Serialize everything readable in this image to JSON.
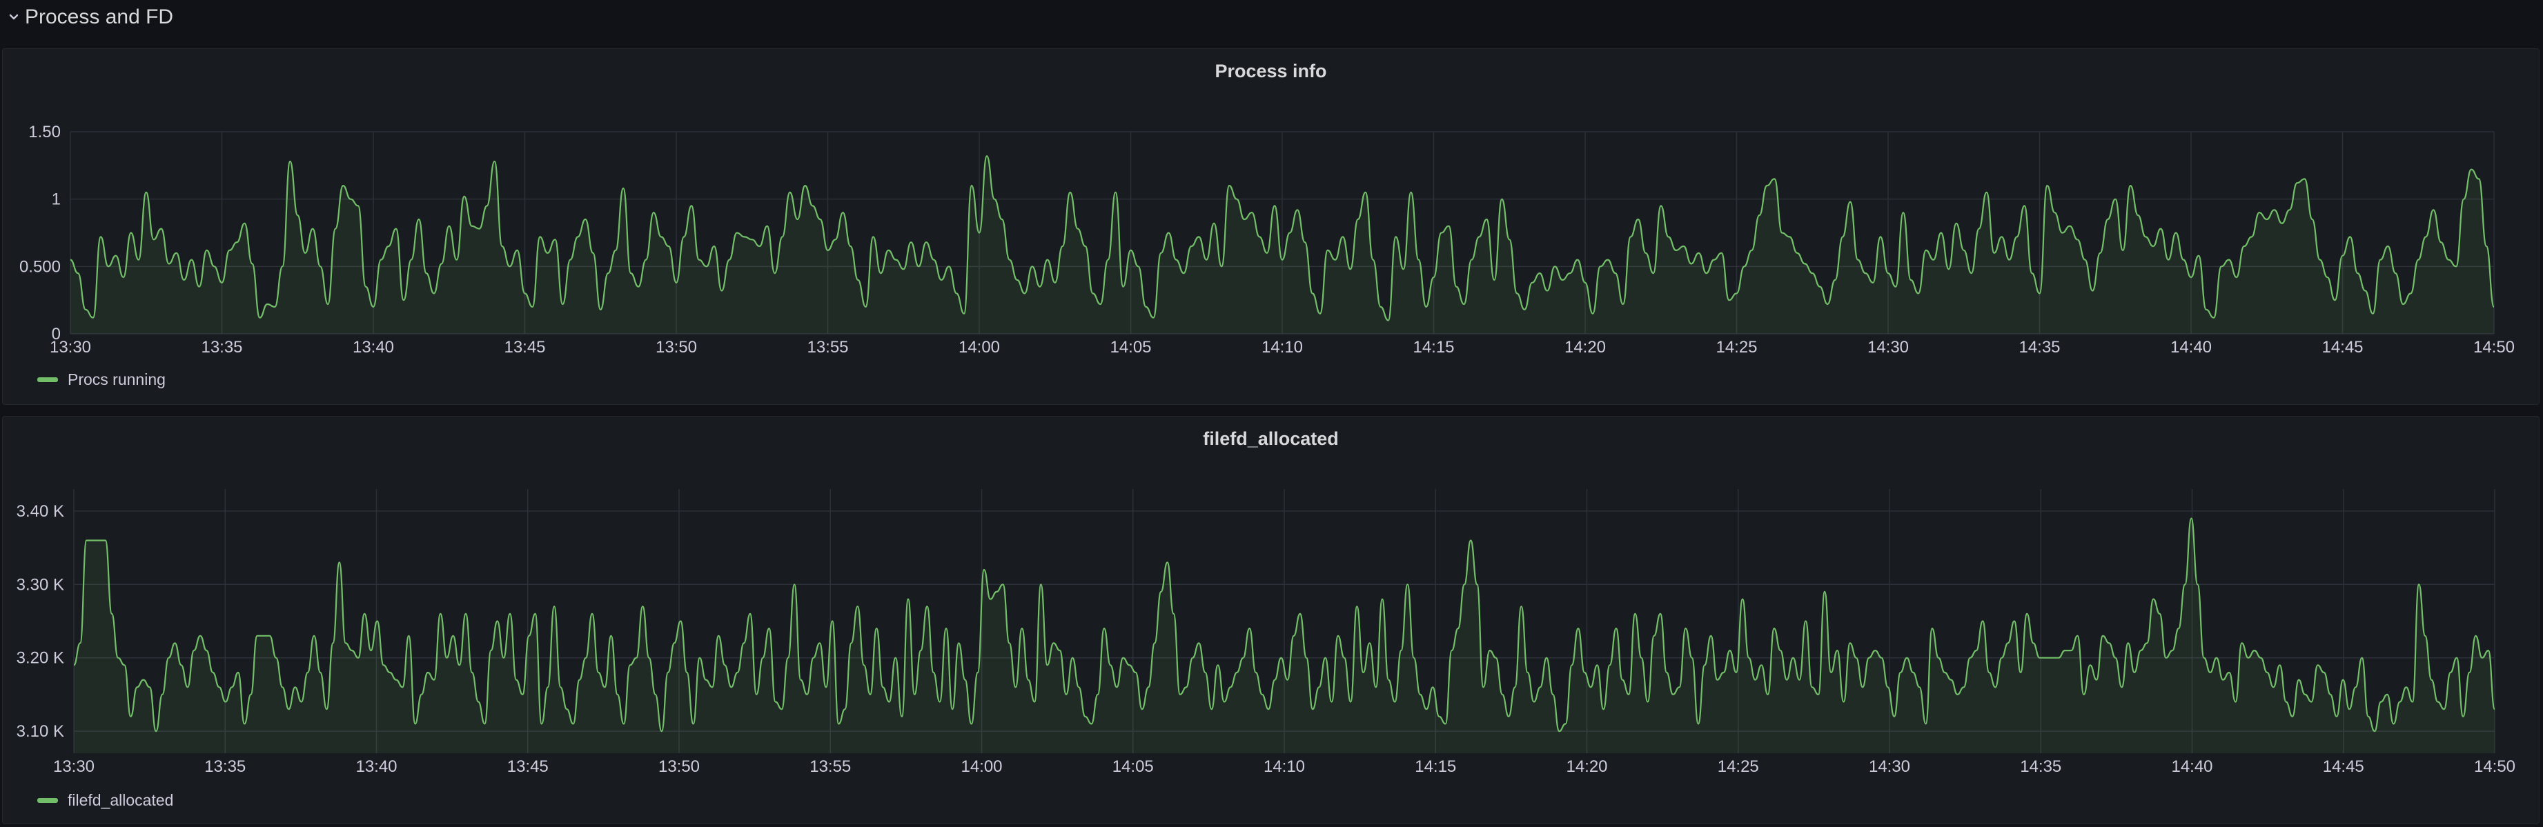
{
  "row": {
    "title": "Process and FD"
  },
  "colors": {
    "series": "#73bf69",
    "fill": "rgba(115,191,105,0.10)",
    "grid": "#2c3038",
    "axis_text": "#ccccdc",
    "panel_bg": "#181b1f",
    "page_bg": "#111217"
  },
  "panels": [
    {
      "title": "Process info",
      "legend": "Procs running",
      "chart_data": {
        "type": "area",
        "x_start": "13:30",
        "x_end": "14:50",
        "x_ticks": [
          "13:30",
          "13:35",
          "13:40",
          "13:45",
          "13:50",
          "13:55",
          "14:00",
          "14:05",
          "14:10",
          "14:15",
          "14:20",
          "14:25",
          "14:30",
          "14:35",
          "14:40",
          "14:45",
          "14:50"
        ],
        "y_ticks": [
          {
            "v": 0,
            "label": "0"
          },
          {
            "v": 0.5,
            "label": "0.500"
          },
          {
            "v": 1,
            "label": "1"
          },
          {
            "v": 1.5,
            "label": "1.50"
          }
        ],
        "ylim": [
          0,
          1.5
        ],
        "series": [
          {
            "name": "Procs running",
            "values": [
              0.55,
              0.45,
              0.18,
              0.12,
              0.72,
              0.5,
              0.58,
              0.42,
              0.75,
              0.55,
              1.05,
              0.7,
              0.78,
              0.52,
              0.6,
              0.4,
              0.55,
              0.35,
              0.62,
              0.5,
              0.38,
              0.62,
              0.68,
              0.82,
              0.52,
              0.12,
              0.22,
              0.2,
              0.5,
              1.28,
              0.88,
              0.6,
              0.78,
              0.5,
              0.22,
              0.78,
              1.1,
              1.0,
              0.95,
              0.35,
              0.2,
              0.55,
              0.65,
              0.78,
              0.25,
              0.55,
              0.85,
              0.45,
              0.3,
              0.52,
              0.8,
              0.55,
              1.02,
              0.8,
              0.78,
              0.95,
              1.28,
              0.65,
              0.5,
              0.62,
              0.3,
              0.2,
              0.72,
              0.6,
              0.7,
              0.22,
              0.55,
              0.72,
              0.85,
              0.6,
              0.18,
              0.45,
              0.62,
              1.08,
              0.45,
              0.35,
              0.55,
              0.9,
              0.72,
              0.65,
              0.38,
              0.72,
              0.95,
              0.55,
              0.5,
              0.65,
              0.32,
              0.55,
              0.75,
              0.72,
              0.7,
              0.65,
              0.8,
              0.45,
              0.72,
              1.05,
              0.85,
              1.1,
              0.95,
              0.85,
              0.62,
              0.7,
              0.9,
              0.65,
              0.4,
              0.2,
              0.72,
              0.45,
              0.62,
              0.55,
              0.48,
              0.68,
              0.5,
              0.68,
              0.55,
              0.4,
              0.5,
              0.3,
              0.15,
              1.1,
              0.75,
              1.32,
              1.0,
              0.85,
              0.55,
              0.4,
              0.3,
              0.5,
              0.35,
              0.55,
              0.38,
              0.65,
              1.05,
              0.78,
              0.65,
              0.3,
              0.22,
              0.55,
              1.05,
              0.35,
              0.62,
              0.5,
              0.2,
              0.12,
              0.6,
              0.75,
              0.55,
              0.45,
              0.65,
              0.72,
              0.55,
              0.82,
              0.5,
              1.1,
              1.0,
              0.85,
              0.9,
              0.72,
              0.6,
              0.95,
              0.55,
              0.75,
              0.92,
              0.68,
              0.3,
              0.15,
              0.62,
              0.55,
              0.72,
              0.48,
              0.85,
              1.05,
              0.55,
              0.2,
              0.1,
              0.72,
              0.48,
              1.05,
              0.55,
              0.2,
              0.42,
              0.75,
              0.8,
              0.35,
              0.22,
              0.55,
              0.72,
              0.85,
              0.4,
              1.0,
              0.7,
              0.3,
              0.18,
              0.38,
              0.45,
              0.32,
              0.5,
              0.4,
              0.45,
              0.55,
              0.38,
              0.15,
              0.5,
              0.55,
              0.45,
              0.22,
              0.72,
              0.85,
              0.6,
              0.45,
              0.95,
              0.72,
              0.62,
              0.65,
              0.52,
              0.6,
              0.45,
              0.55,
              0.6,
              0.25,
              0.3,
              0.5,
              0.62,
              0.88,
              1.1,
              1.15,
              0.75,
              0.72,
              0.6,
              0.52,
              0.45,
              0.35,
              0.22,
              0.4,
              0.72,
              0.98,
              0.55,
              0.45,
              0.38,
              0.72,
              0.45,
              0.35,
              0.9,
              0.4,
              0.3,
              0.62,
              0.55,
              0.75,
              0.48,
              0.82,
              0.62,
              0.45,
              0.78,
              1.05,
              0.6,
              0.72,
              0.55,
              0.72,
              0.95,
              0.45,
              0.3,
              1.1,
              0.9,
              0.75,
              0.8,
              0.7,
              0.55,
              0.32,
              0.6,
              0.85,
              1.0,
              0.62,
              1.1,
              0.88,
              0.72,
              0.65,
              0.78,
              0.55,
              0.75,
              0.55,
              0.42,
              0.58,
              0.18,
              0.12,
              0.5,
              0.55,
              0.42,
              0.65,
              0.72,
              0.9,
              0.85,
              0.92,
              0.82,
              0.92,
              1.12,
              1.15,
              0.85,
              0.55,
              0.42,
              0.25,
              0.58,
              0.72,
              0.45,
              0.32,
              0.15,
              0.55,
              0.65,
              0.45,
              0.22,
              0.3,
              0.55,
              0.72,
              0.92,
              0.68,
              0.55,
              0.5,
              1.0,
              1.22,
              1.15,
              0.65,
              0.2
            ]
          }
        ]
      }
    },
    {
      "title": "filefd_allocated",
      "legend": "filefd_allocated",
      "chart_data": {
        "type": "area",
        "x_start": "13:30",
        "x_end": "14:50",
        "x_ticks": [
          "13:30",
          "13:35",
          "13:40",
          "13:45",
          "13:50",
          "13:55",
          "14:00",
          "14:05",
          "14:10",
          "14:15",
          "14:20",
          "14:25",
          "14:30",
          "14:35",
          "14:40",
          "14:45",
          "14:50"
        ],
        "y_ticks": [
          {
            "v": 3100,
            "label": "3.10 K"
          },
          {
            "v": 3200,
            "label": "3.20 K"
          },
          {
            "v": 3300,
            "label": "3.30 K"
          },
          {
            "v": 3400,
            "label": "3.40 K"
          }
        ],
        "ylim": [
          3070,
          3430
        ],
        "series": [
          {
            "name": "filefd_allocated",
            "values": [
              3190,
              3220,
              3360,
              3360,
              3360,
              3360,
              3260,
              3200,
              3190,
              3120,
              3160,
              3170,
              3160,
              3100,
              3150,
              3200,
              3220,
              3190,
              3160,
              3210,
              3230,
              3210,
              3180,
              3160,
              3140,
              3160,
              3180,
              3110,
              3150,
              3230,
              3230,
              3230,
              3200,
              3160,
              3130,
              3160,
              3140,
              3180,
              3230,
              3180,
              3130,
              3220,
              3330,
              3220,
              3210,
              3200,
              3260,
              3210,
              3250,
              3190,
              3180,
              3170,
              3160,
              3230,
              3110,
              3150,
              3180,
              3170,
              3260,
              3200,
              3230,
              3190,
              3260,
              3180,
              3140,
              3110,
              3210,
              3250,
              3200,
              3260,
              3170,
              3150,
              3230,
              3260,
              3110,
              3160,
              3270,
              3160,
              3130,
              3110,
              3170,
              3200,
              3260,
              3180,
              3160,
              3230,
              3150,
              3110,
              3190,
              3200,
              3270,
              3200,
              3150,
              3100,
              3180,
              3220,
              3250,
              3180,
              3110,
              3200,
              3170,
              3160,
              3230,
              3190,
              3160,
              3180,
              3220,
              3260,
              3150,
              3200,
              3240,
              3140,
              3130,
              3200,
              3300,
              3170,
              3150,
              3200,
              3220,
              3160,
              3250,
              3110,
              3130,
              3220,
              3270,
              3190,
              3150,
              3240,
              3160,
              3140,
              3200,
              3120,
              3280,
              3150,
              3210,
              3270,
              3180,
              3140,
              3240,
              3130,
              3220,
              3170,
              3110,
              3180,
              3320,
              3280,
              3290,
              3300,
              3220,
              3160,
              3240,
              3170,
              3140,
              3300,
              3190,
              3220,
              3210,
              3150,
              3200,
              3160,
              3120,
              3110,
              3150,
              3240,
              3190,
              3160,
              3200,
              3190,
              3180,
              3130,
              3160,
              3220,
              3290,
              3330,
              3260,
              3150,
              3160,
              3200,
              3220,
              3180,
              3130,
              3190,
              3140,
              3160,
              3180,
              3200,
              3240,
              3180,
              3150,
              3130,
              3170,
              3200,
              3170,
              3230,
              3260,
              3200,
              3130,
              3160,
              3200,
              3140,
              3230,
              3200,
              3140,
              3270,
              3180,
              3220,
              3160,
              3280,
              3170,
              3140,
              3210,
              3300,
              3200,
              3150,
              3130,
              3160,
              3120,
              3110,
              3210,
              3240,
              3300,
              3360,
              3300,
              3160,
              3210,
              3200,
              3150,
              3120,
              3160,
              3270,
              3180,
              3140,
              3160,
              3200,
              3150,
              3100,
              3110,
              3190,
              3240,
              3180,
              3160,
              3190,
              3130,
              3190,
              3240,
              3170,
              3150,
              3260,
              3200,
              3140,
              3230,
              3260,
              3180,
              3150,
              3160,
              3240,
              3200,
              3110,
              3190,
              3230,
              3170,
              3180,
              3210,
              3180,
              3280,
              3200,
              3170,
              3190,
              3150,
              3240,
              3210,
              3170,
              3200,
              3170,
              3250,
              3160,
              3150,
              3290,
              3180,
              3210,
              3140,
              3220,
              3200,
              3160,
              3200,
              3210,
              3200,
              3160,
              3120,
              3180,
              3200,
              3180,
              3160,
              3110,
              3240,
              3200,
              3180,
              3170,
              3150,
              3160,
              3200,
              3210,
              3250,
              3180,
              3160,
              3200,
              3220,
              3250,
              3180,
              3260,
              3220,
              3200,
              3200,
              3200,
              3200,
              3210,
              3210,
              3230,
              3150,
              3190,
              3170,
              3230,
              3220,
              3200,
              3160,
              3220,
              3180,
              3210,
              3220,
              3280,
              3260,
              3200,
              3210,
              3240,
              3300,
              3390,
              3300,
              3200,
              3180,
              3200,
              3170,
              3180,
              3140,
              3220,
              3200,
              3210,
              3200,
              3180,
              3160,
              3190,
              3140,
              3120,
              3170,
              3150,
              3140,
              3190,
              3180,
              3150,
              3120,
              3170,
              3130,
              3160,
              3200,
              3120,
              3100,
              3140,
              3150,
              3110,
              3140,
              3160,
              3140,
              3300,
              3230,
              3170,
              3140,
              3130,
              3180,
              3200,
              3120,
              3180,
              3230,
              3200,
              3210,
              3130
            ]
          }
        ]
      }
    }
  ]
}
